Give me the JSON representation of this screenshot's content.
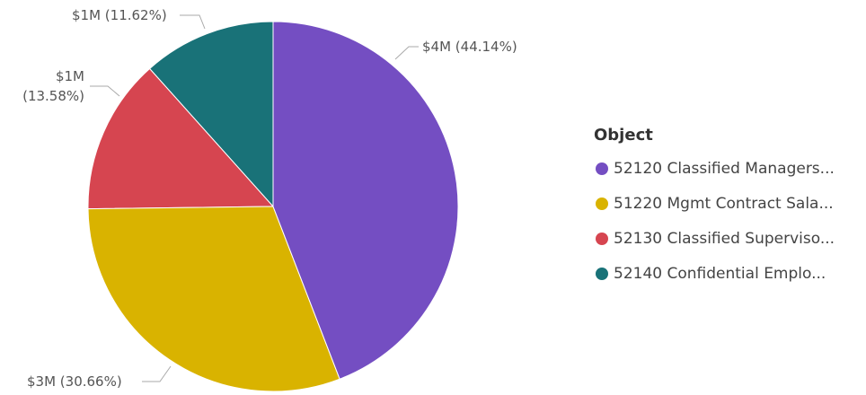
{
  "chart_data": {
    "type": "pie",
    "categories": [
      "52120 Classified Managers...",
      "51220 Mgmt Contract Sala...",
      "52130 Classified Superviso...",
      "52140 Confidential Emplo..."
    ],
    "values": [
      44.14,
      30.66,
      13.58,
      11.62
    ],
    "value_labels": [
      "$4M (44.14%)",
      "$3M (30.66%)",
      "$1M (13.58%)",
      "$1M (11.62%)"
    ],
    "colors": [
      "#744EC2",
      "#D9B300",
      "#D64550",
      "#197278"
    ],
    "legend_title": "Object",
    "legend_position": "right"
  }
}
